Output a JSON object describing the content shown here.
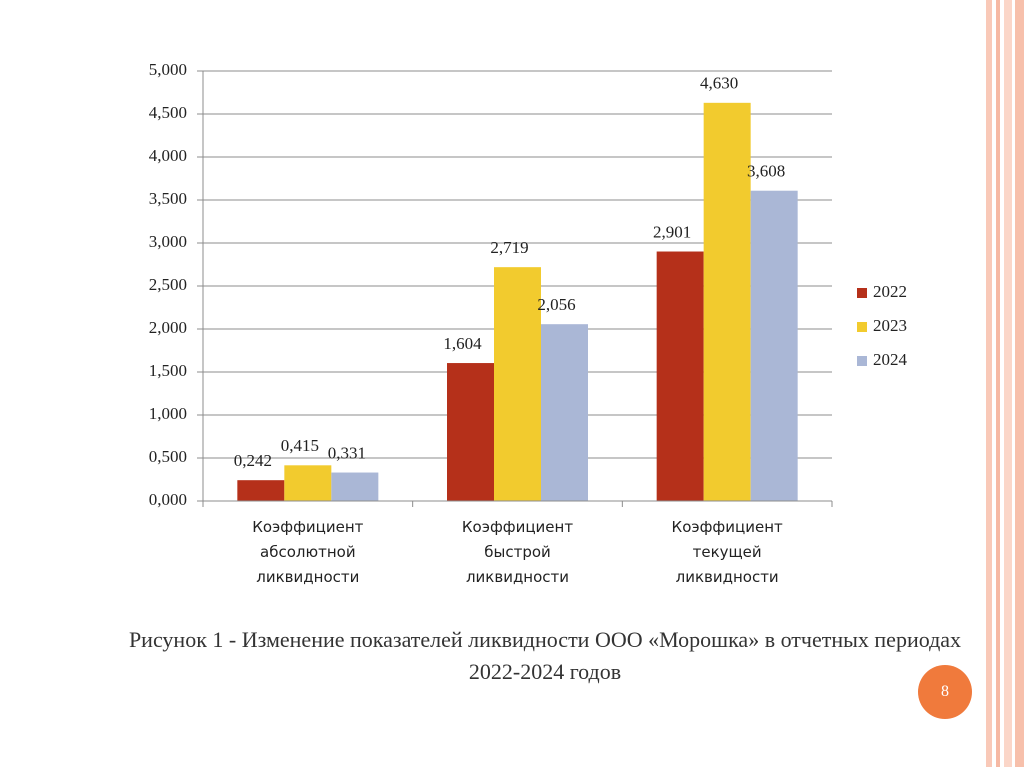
{
  "chart_data": {
    "type": "bar",
    "categories": [
      "Коэффициент абсолютной ликвидности",
      "Коэффициент быстрой ликвидности",
      "Коэффициент текущей ликвидности"
    ],
    "series": [
      {
        "name": "2022",
        "color": "#b5301a",
        "values": [
          0.242,
          1.604,
          2.901
        ],
        "value_labels": [
          "0,242",
          "1,604",
          "2,901"
        ]
      },
      {
        "name": "2023",
        "color": "#f2cb2e",
        "values": [
          0.415,
          2.719,
          4.63
        ],
        "value_labels": [
          "0,415",
          "2,719",
          "4,630"
        ]
      },
      {
        "name": "2024",
        "color": "#aab7d6",
        "values": [
          0.331,
          2.056,
          3.608
        ],
        "value_labels": [
          "0,331",
          "2,056",
          "3,608"
        ]
      }
    ],
    "ylim": [
      0,
      5
    ],
    "yticks": [
      {
        "value": 0,
        "label": "0,000"
      },
      {
        "value": 0.5,
        "label": "0,500"
      },
      {
        "value": 1,
        "label": "1,000"
      },
      {
        "value": 1.5,
        "label": "1,500"
      },
      {
        "value": 2,
        "label": "2,000"
      },
      {
        "value": 2.5,
        "label": "2,500"
      },
      {
        "value": 3,
        "label": "3,000"
      },
      {
        "value": 3.5,
        "label": "3,500"
      },
      {
        "value": 4,
        "label": "4,000"
      },
      {
        "value": 4.5,
        "label": "4,500"
      },
      {
        "value": 5,
        "label": "5,000"
      }
    ],
    "grid": true,
    "legend": "right",
    "caption": "Рисунок 1 - Изменение показателей ликвидности ООО «Морошка» в отчетных периодах 2022-2024 годов"
  },
  "page_number": "8"
}
